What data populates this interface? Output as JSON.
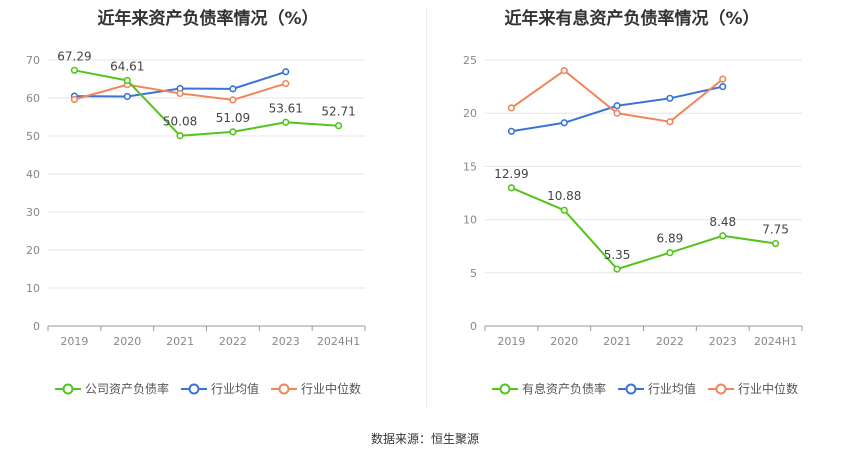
{
  "colors": {
    "company": "#52c41a",
    "industry_avg": "#3a73d6",
    "industry_median": "#f0855a",
    "axis": "#999999",
    "grid": "#e6e6e6"
  },
  "source_text": "数据来源：恒生聚源",
  "chart_data": [
    {
      "type": "line",
      "title": "近年来资产负债率情况（%）",
      "categories": [
        "2019",
        "2020",
        "2021",
        "2022",
        "2023",
        "2024H1"
      ],
      "ylim": [
        0,
        70
      ],
      "yticks": [
        0,
        10,
        20,
        30,
        40,
        50,
        60,
        70
      ],
      "grid": true,
      "legend": "bottom",
      "series": [
        {
          "name": "公司资产负债率",
          "key": "company",
          "values": [
            67.29,
            64.61,
            50.08,
            51.09,
            53.61,
            52.71
          ],
          "labels": [
            "67.29",
            "64.61",
            "50.08",
            "51.09",
            "53.61",
            "52.71"
          ]
        },
        {
          "name": "行业均值",
          "key": "industry_avg",
          "values": [
            60.5,
            60.4,
            62.5,
            62.4,
            66.9,
            null
          ]
        },
        {
          "name": "行业中位数",
          "key": "industry_median",
          "values": [
            59.6,
            63.5,
            61.2,
            59.5,
            63.8,
            null
          ]
        }
      ]
    },
    {
      "type": "line",
      "title": "近年来有息资产负债率情况（%）",
      "categories": [
        "2019",
        "2020",
        "2021",
        "2022",
        "2023",
        "2024H1"
      ],
      "ylim": [
        0,
        25
      ],
      "yticks": [
        0,
        5,
        10,
        15,
        20,
        25
      ],
      "grid": true,
      "legend": "bottom",
      "series": [
        {
          "name": "有息资产负债率",
          "key": "company",
          "values": [
            12.99,
            10.88,
            5.35,
            6.89,
            8.48,
            7.75
          ],
          "labels": [
            "12.99",
            "10.88",
            "5.35",
            "6.89",
            "8.48",
            "7.75"
          ]
        },
        {
          "name": "行业均值",
          "key": "industry_avg",
          "values": [
            18.3,
            19.1,
            20.7,
            21.4,
            22.5,
            null
          ]
        },
        {
          "name": "行业中位数",
          "key": "industry_median",
          "values": [
            20.5,
            24.0,
            20.0,
            19.2,
            23.2,
            null
          ]
        }
      ]
    }
  ]
}
